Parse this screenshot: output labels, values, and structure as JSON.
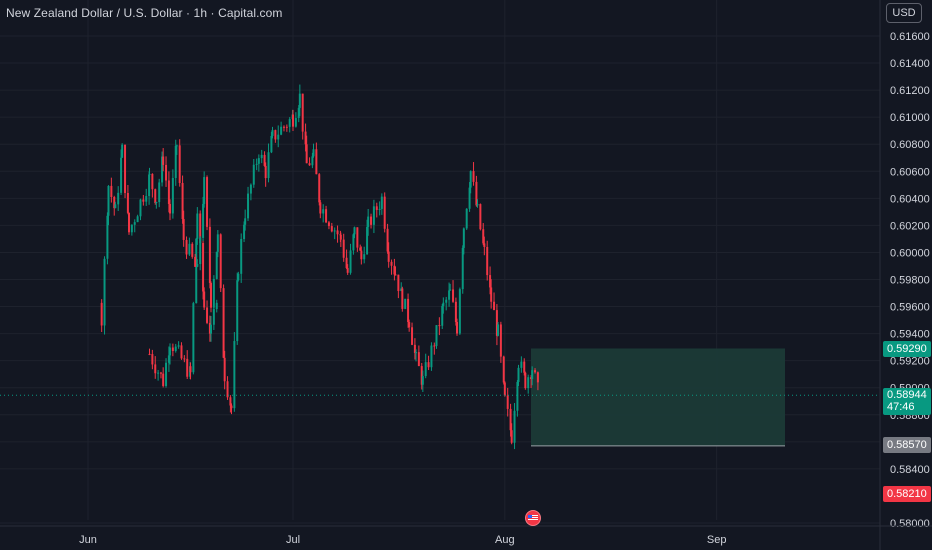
{
  "header": {
    "title": "New Zealand Dollar / U.S. Dollar · 1h · Capital.com",
    "currency_button": "USD"
  },
  "colors": {
    "background": "#131722",
    "up": "#089981",
    "down": "#f23645",
    "grid": "#1e222d",
    "text": "#d1d4dc",
    "profit_zone": "#1b3a37",
    "loss_zone": "#3b1f2a"
  },
  "position_tool": {
    "type": "long",
    "target_price": "0.59290",
    "entry_price": "0.58570",
    "stop_price": "0.58210",
    "current_price": "0.58944",
    "countdown": "47:46"
  },
  "event_marker": "us-flag-icon",
  "chart_data": {
    "type": "candlestick",
    "title": "New Zealand Dollar / U.S. Dollar · 1h · Capital.com",
    "y_axis_ticks": [
      "0.61600",
      "0.61400",
      "0.61200",
      "0.61000",
      "0.60800",
      "0.60600",
      "0.60400",
      "0.60200",
      "0.60000",
      "0.59800",
      "0.59600",
      "0.59400",
      "0.59200",
      "0.59000",
      "0.58800",
      "0.58600",
      "0.58400",
      "0.58000"
    ],
    "x_axis_ticks": [
      "Jun",
      "Jul",
      "Aug",
      "Sep"
    ],
    "ylim": [
      0.5794,
      0.6183
    ],
    "grid": true,
    "price_path": [
      {
        "x": "May 21",
        "y": 0.5925
      },
      {
        "x": "May 23",
        "y": 0.5905
      },
      {
        "x": "May 24",
        "y": 0.5935
      },
      {
        "x": "May 27",
        "y": 0.591
      },
      {
        "x": "May 28",
        "y": 0.603
      },
      {
        "x": "May 29",
        "y": 0.596
      },
      {
        "x": "May 30",
        "y": 0.594
      },
      {
        "x": "May 31",
        "y": 0.5975
      },
      {
        "x": "Jun 3",
        "y": 0.595
      },
      {
        "x": "Jun 4",
        "y": 0.605
      },
      {
        "x": "Jun 5",
        "y": 0.603
      },
      {
        "x": "Jun 6",
        "y": 0.6075
      },
      {
        "x": "Jun 7",
        "y": 0.6015
      },
      {
        "x": "Jun 10",
        "y": 0.6055
      },
      {
        "x": "Jun 11",
        "y": 0.604
      },
      {
        "x": "Jun 12",
        "y": 0.607
      },
      {
        "x": "Jun 13",
        "y": 0.603
      },
      {
        "x": "Jun 14",
        "y": 0.608
      },
      {
        "x": "Jun 15",
        "y": 0.601
      },
      {
        "x": "Jun 17",
        "y": 0.5985
      },
      {
        "x": "Jun 18",
        "y": 0.605
      },
      {
        "x": "Jun 19",
        "y": 0.5965
      },
      {
        "x": "Jun 20",
        "y": 0.601
      },
      {
        "x": "Jun 21",
        "y": 0.591
      },
      {
        "x": "Jun 22",
        "y": 0.5885
      },
      {
        "x": "Jun 23",
        "y": 0.599
      },
      {
        "x": "Jun 24",
        "y": 0.603
      },
      {
        "x": "Jun 26",
        "y": 0.6075
      },
      {
        "x": "Jun 27",
        "y": 0.606
      },
      {
        "x": "Jun 28",
        "y": 0.6085
      },
      {
        "x": "Jul 1",
        "y": 0.61
      },
      {
        "x": "Jul 2",
        "y": 0.6115
      },
      {
        "x": "Jul 3",
        "y": 0.6065
      },
      {
        "x": "Jul 4",
        "y": 0.607
      },
      {
        "x": "Jul 5",
        "y": 0.6035
      },
      {
        "x": "Jul 8",
        "y": 0.601
      },
      {
        "x": "Jul 9",
        "y": 0.5985
      },
      {
        "x": "Jul 10",
        "y": 0.6015
      },
      {
        "x": "Jul 11",
        "y": 0.5995
      },
      {
        "x": "Jul 12",
        "y": 0.602
      },
      {
        "x": "Jul 14",
        "y": 0.604
      },
      {
        "x": "Jul 15",
        "y": 0.6
      },
      {
        "x": "Jul 16",
        "y": 0.5985
      },
      {
        "x": "Jul 17",
        "y": 0.5965
      },
      {
        "x": "Jul 18",
        "y": 0.595
      },
      {
        "x": "Jul 19",
        "y": 0.592
      },
      {
        "x": "Jul 20",
        "y": 0.5905
      },
      {
        "x": "Jul 22",
        "y": 0.594
      },
      {
        "x": "Jul 23",
        "y": 0.596
      },
      {
        "x": "Jul 24",
        "y": 0.597
      },
      {
        "x": "Jul 25",
        "y": 0.5945
      },
      {
        "x": "Jul 26",
        "y": 0.602
      },
      {
        "x": "Jul 27",
        "y": 0.606
      },
      {
        "x": "Jul 28",
        "y": 0.603
      },
      {
        "x": "Jul 29",
        "y": 0.6
      },
      {
        "x": "Jul 30",
        "y": 0.5965
      },
      {
        "x": "Jul 31",
        "y": 0.594
      },
      {
        "x": "Aug 1",
        "y": 0.589
      },
      {
        "x": "Aug 2",
        "y": 0.5865
      },
      {
        "x": "Aug 3",
        "y": 0.592
      },
      {
        "x": "Aug 4",
        "y": 0.5905
      },
      {
        "x": "Aug 5",
        "y": 0.5915
      },
      {
        "x": "Aug 6",
        "y": 0.5894
      }
    ],
    "position_zones": {
      "profit": {
        "from": 0.5857,
        "to": 0.5929
      },
      "loss": {
        "from": 0.5821,
        "to": 0.5857
      }
    },
    "current_price": 0.58944
  }
}
